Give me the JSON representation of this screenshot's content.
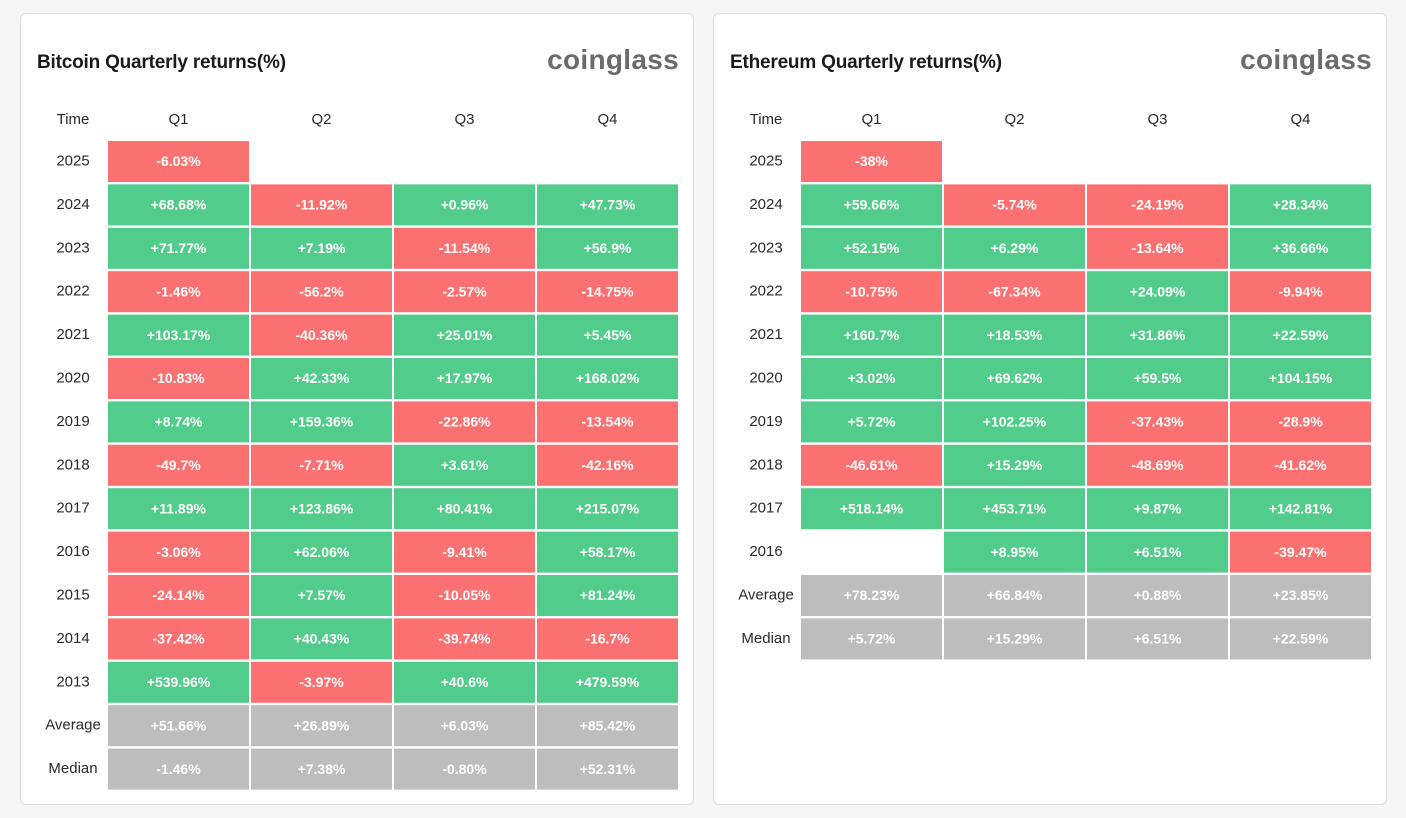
{
  "colors": {
    "positive": "#52cc8a",
    "negative": "#fb7171",
    "summary": "#bdbdbd",
    "brand": "#6b6b6b"
  },
  "chart_data": [
    {
      "type": "table",
      "title": "Bitcoin Quarterly returns(%)",
      "brand": "coinglass",
      "header_label": "Time",
      "columns": [
        "Q1",
        "Q2",
        "Q3",
        "Q4"
      ],
      "rows": [
        {
          "label": "2025",
          "values": [
            "-6.03%",
            "",
            "",
            ""
          ]
        },
        {
          "label": "2024",
          "values": [
            "+68.68%",
            "-11.92%",
            "+0.96%",
            "+47.73%"
          ]
        },
        {
          "label": "2023",
          "values": [
            "+71.77%",
            "+7.19%",
            "-11.54%",
            "+56.9%"
          ]
        },
        {
          "label": "2022",
          "values": [
            "-1.46%",
            "-56.2%",
            "-2.57%",
            "-14.75%"
          ]
        },
        {
          "label": "2021",
          "values": [
            "+103.17%",
            "-40.36%",
            "+25.01%",
            "+5.45%"
          ]
        },
        {
          "label": "2020",
          "values": [
            "-10.83%",
            "+42.33%",
            "+17.97%",
            "+168.02%"
          ]
        },
        {
          "label": "2019",
          "values": [
            "+8.74%",
            "+159.36%",
            "-22.86%",
            "-13.54%"
          ]
        },
        {
          "label": "2018",
          "values": [
            "-49.7%",
            "-7.71%",
            "+3.61%",
            "-42.16%"
          ]
        },
        {
          "label": "2017",
          "values": [
            "+11.89%",
            "+123.86%",
            "+80.41%",
            "+215.07%"
          ]
        },
        {
          "label": "2016",
          "values": [
            "-3.06%",
            "+62.06%",
            "-9.41%",
            "+58.17%"
          ]
        },
        {
          "label": "2015",
          "values": [
            "-24.14%",
            "+7.57%",
            "-10.05%",
            "+81.24%"
          ]
        },
        {
          "label": "2014",
          "values": [
            "-37.42%",
            "+40.43%",
            "-39.74%",
            "-16.7%"
          ]
        },
        {
          "label": "2013",
          "values": [
            "+539.96%",
            "-3.97%",
            "+40.6%",
            "+479.59%"
          ]
        },
        {
          "label": "Average",
          "summary": true,
          "values": [
            "+51.66%",
            "+26.89%",
            "+6.03%",
            "+85.42%"
          ]
        },
        {
          "label": "Median",
          "summary": true,
          "values": [
            "-1.46%",
            "+7.38%",
            "-0.80%",
            "+52.31%"
          ]
        }
      ]
    },
    {
      "type": "table",
      "title": "Ethereum Quarterly returns(%)",
      "brand": "coinglass",
      "header_label": "Time",
      "columns": [
        "Q1",
        "Q2",
        "Q3",
        "Q4"
      ],
      "rows": [
        {
          "label": "2025",
          "values": [
            "-38%",
            "",
            "",
            ""
          ]
        },
        {
          "label": "2024",
          "values": [
            "+59.66%",
            "-5.74%",
            "-24.19%",
            "+28.34%"
          ]
        },
        {
          "label": "2023",
          "values": [
            "+52.15%",
            "+6.29%",
            "-13.64%",
            "+36.66%"
          ]
        },
        {
          "label": "2022",
          "values": [
            "-10.75%",
            "-67.34%",
            "+24.09%",
            "-9.94%"
          ]
        },
        {
          "label": "2021",
          "values": [
            "+160.7%",
            "+18.53%",
            "+31.86%",
            "+22.59%"
          ]
        },
        {
          "label": "2020",
          "values": [
            "+3.02%",
            "+69.62%",
            "+59.5%",
            "+104.15%"
          ]
        },
        {
          "label": "2019",
          "values": [
            "+5.72%",
            "+102.25%",
            "-37.43%",
            "-28.9%"
          ]
        },
        {
          "label": "2018",
          "values": [
            "-46.61%",
            "+15.29%",
            "-48.69%",
            "-41.62%"
          ]
        },
        {
          "label": "2017",
          "values": [
            "+518.14%",
            "+453.71%",
            "+9.87%",
            "+142.81%"
          ]
        },
        {
          "label": "2016",
          "values": [
            "",
            "+8.95%",
            "+6.51%",
            "-39.47%"
          ]
        },
        {
          "label": "Average",
          "summary": true,
          "values": [
            "+78.23%",
            "+66.84%",
            "+0.88%",
            "+23.85%"
          ]
        },
        {
          "label": "Median",
          "summary": true,
          "values": [
            "+5.72%",
            "+15.29%",
            "+6.51%",
            "+22.59%"
          ]
        }
      ]
    }
  ]
}
